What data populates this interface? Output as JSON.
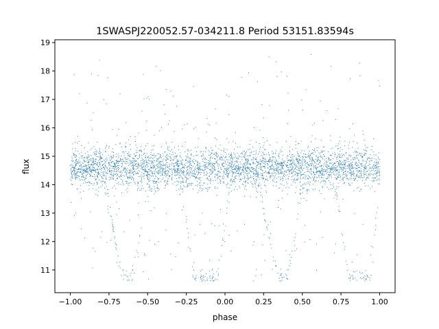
{
  "chart_data": {
    "type": "scatter",
    "title": "1SWASPJ220052.57-034211.8 Period 53151.83594s",
    "xlabel": "phase",
    "ylabel": "flux",
    "xlim": [
      -1.1,
      1.1
    ],
    "ylim": [
      10.2,
      19.1
    ],
    "xticks": [
      "−1.00",
      "−0.75",
      "−0.50",
      "−0.25",
      "0.00",
      "0.25",
      "0.50",
      "0.75",
      "1.00"
    ],
    "xtick_values": [
      -1.0,
      -0.75,
      -0.5,
      -0.25,
      0.0,
      0.25,
      0.5,
      0.75,
      1.0
    ],
    "yticks": [
      "11",
      "12",
      "13",
      "14",
      "15",
      "16",
      "17",
      "18",
      "19"
    ],
    "ytick_values": [
      11,
      12,
      13,
      14,
      15,
      16,
      17,
      18,
      19
    ],
    "grid": false,
    "point_color": "#1f77b4",
    "series": [
      {
        "baseline_flux": 14.6,
        "baseline_spread": 0.35,
        "phase_range": [
          -1.0,
          1.0
        ],
        "eclipse_profile": {
          "phases": [
            -0.8,
            -0.75,
            -0.7,
            -0.65,
            -0.6,
            -0.55,
            -0.5,
            -0.3,
            -0.25,
            -0.2,
            -0.05,
            0.0,
            0.05,
            0.2,
            0.25,
            0.3,
            0.35,
            0.4,
            0.45,
            0.5,
            0.7,
            0.75,
            0.8,
            0.95,
            1.0
          ],
          "flux": [
            14.6,
            13.2,
            11.6,
            10.7,
            10.7,
            12.2,
            14.0,
            14.6,
            12.6,
            10.7,
            10.7,
            12.5,
            14.6,
            14.6,
            13.2,
            11.6,
            10.7,
            10.7,
            12.2,
            14.0,
            14.6,
            12.6,
            10.7,
            10.7,
            14.5
          ]
        }
      }
    ]
  }
}
